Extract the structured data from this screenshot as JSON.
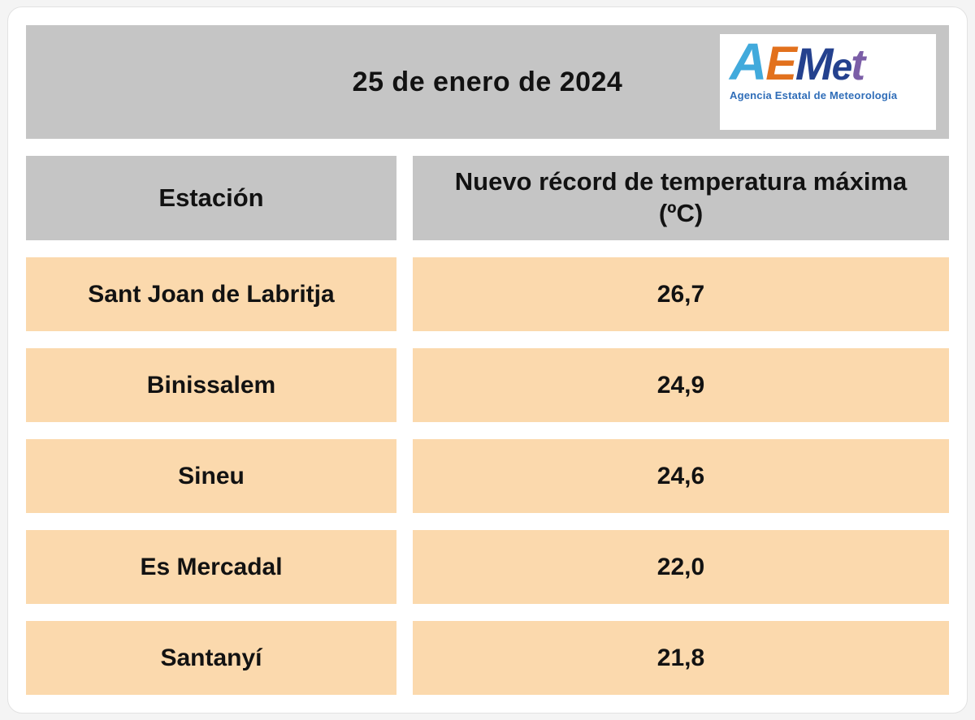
{
  "header": {
    "date": "25 de enero de 2024",
    "logo": {
      "letters": [
        {
          "char": "A",
          "color": "#41aadc"
        },
        {
          "char": "E",
          "color": "#e2711d"
        },
        {
          "char": "M",
          "color": "#24418e"
        },
        {
          "char": "e",
          "color": "#24418e"
        },
        {
          "char": "t",
          "color": "#7b5ea7"
        }
      ],
      "tagline": "Agencia Estatal de Meteorología"
    }
  },
  "table": {
    "columns": {
      "station": "Estación",
      "record": "Nuevo récord de temperatura máxima (ºC)"
    },
    "rows": [
      {
        "station": "Sant Joan de Labritja",
        "value": "26,7"
      },
      {
        "station": "Binissalem",
        "value": "24,9"
      },
      {
        "station": "Sineu",
        "value": "24,6"
      },
      {
        "station": "Es Mercadal",
        "value": "22,0"
      },
      {
        "station": "Santanyí",
        "value": "21,8"
      }
    ]
  },
  "colors": {
    "header_band": "#c5c5c5",
    "row_bg": "#fbd9ad",
    "card_bg": "#ffffff",
    "page_bg": "#f4f4f4",
    "text": "#121212",
    "logo_blue": "#24418e",
    "logo_light_blue": "#41aadc",
    "logo_orange": "#e2711d",
    "logo_purple": "#7b5ea7",
    "tagline_blue": "#2f6db8"
  },
  "chart_data": {
    "type": "table",
    "title": "25 de enero de 2024",
    "columns": [
      "Estación",
      "Nuevo récord de temperatura máxima (ºC)"
    ],
    "rows": [
      [
        "Sant Joan de Labritja",
        "26,7"
      ],
      [
        "Binissalem",
        "24,9"
      ],
      [
        "Sineu",
        "24,6"
      ],
      [
        "Es Mercadal",
        "22,0"
      ],
      [
        "Santanyí",
        "21,8"
      ]
    ]
  }
}
